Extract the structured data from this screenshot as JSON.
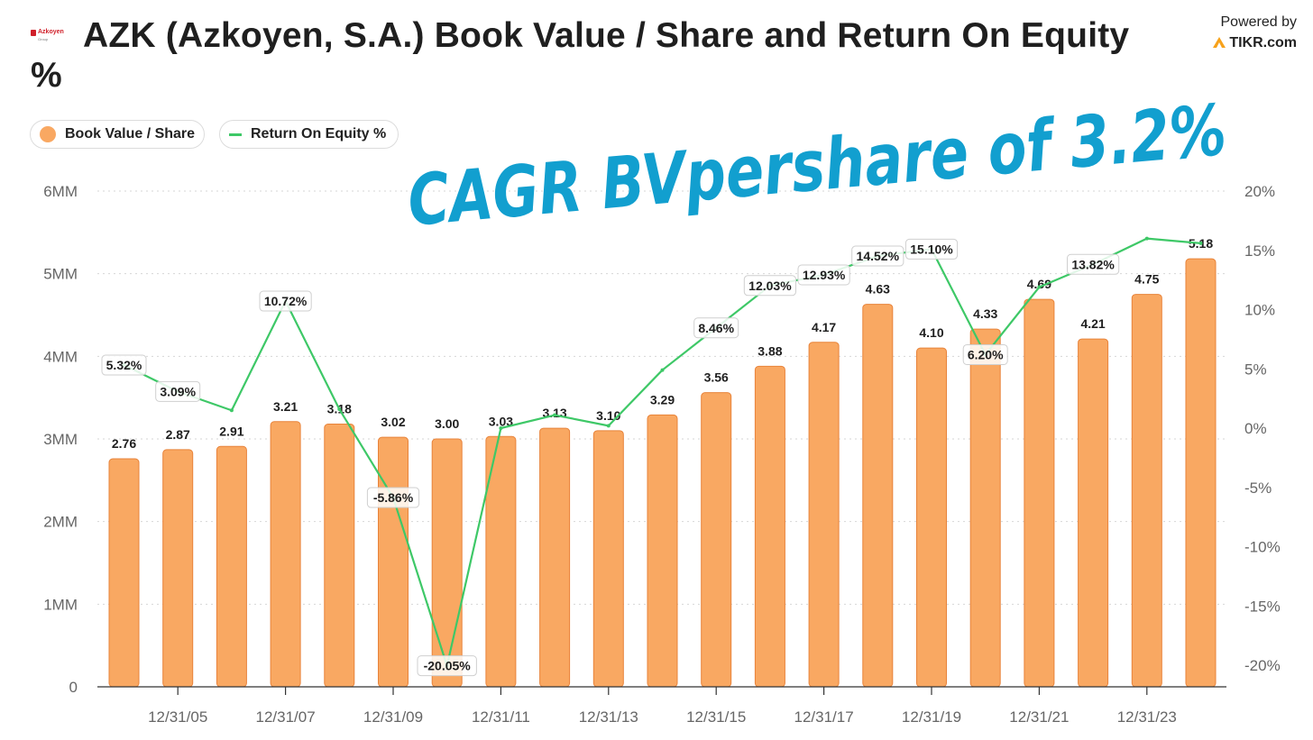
{
  "header": {
    "logo_text": "Azkoyen",
    "logo_sub": "Group",
    "title": "AZK (Azkoyen, S.A.) Book Value / Share and Return On Equity %",
    "powered_by": "Powered by",
    "brand": "TIKR.com"
  },
  "legend": {
    "book_value": "Book Value / Share",
    "roe": "Return On Equity %"
  },
  "annotation": {
    "handwritten": "CAGR BVpershare of 3.2%",
    "color": "#129fcf"
  },
  "colors": {
    "bar_fill": "#f9a862",
    "bar_stroke": "#e8833a",
    "line": "#3ec867",
    "grid": "#d6d6d6"
  },
  "chart_data": {
    "type": "bar+line",
    "left_axis": {
      "ticks": [
        "0",
        "1MM",
        "2MM",
        "3MM",
        "4MM",
        "5MM",
        "6MM"
      ],
      "range": [
        0,
        6
      ]
    },
    "right_axis": {
      "ticks": [
        "-20%",
        "-15%",
        "-10%",
        "-5%",
        "0%",
        "5%",
        "10%",
        "15%",
        "20%"
      ],
      "range": [
        -20,
        20
      ]
    },
    "x_tick_labels": [
      "12/31/05",
      "12/31/07",
      "12/31/09",
      "12/31/11",
      "12/31/13",
      "12/31/15",
      "12/31/17",
      "12/31/19",
      "12/31/21",
      "12/31/23"
    ],
    "grid": true,
    "legend_position": "top-left",
    "series": [
      {
        "name": "Book Value / Share",
        "kind": "bar",
        "axis": "left",
        "values": [
          2.76,
          2.87,
          2.91,
          3.21,
          3.18,
          3.02,
          3.0,
          3.03,
          3.13,
          3.1,
          3.29,
          3.56,
          3.88,
          4.17,
          4.63,
          4.1,
          4.33,
          4.69,
          4.21,
          4.75,
          5.18
        ],
        "labels": [
          "2.76",
          "2.87",
          "2.91",
          "3.21",
          "3.18",
          "3.02",
          "3.00",
          "3.03",
          "3.13",
          "3.10",
          "3.29",
          "3.56",
          "3.88",
          "4.17",
          "4.63",
          "4.10",
          "4.33",
          "4.69",
          "4.21",
          "4.75",
          "5.18"
        ]
      },
      {
        "name": "Return On Equity %",
        "kind": "line",
        "axis": "right",
        "values": [
          5.32,
          3.09,
          1.5,
          10.72,
          1.6,
          -5.86,
          -20.05,
          0.0,
          1.1,
          0.2,
          4.9,
          8.46,
          12.03,
          12.93,
          14.52,
          15.1,
          6.2,
          11.9,
          13.82,
          16.0,
          15.6
        ],
        "labels": [
          "5.32%",
          "3.09%",
          "",
          "10.72%",
          "",
          "-5.86%",
          "-20.05%",
          "",
          "",
          "",
          "",
          "8.46%",
          "12.03%",
          "12.93%",
          "14.52%",
          "15.10%",
          "6.20%",
          "",
          "13.82%",
          "",
          ""
        ]
      }
    ]
  }
}
